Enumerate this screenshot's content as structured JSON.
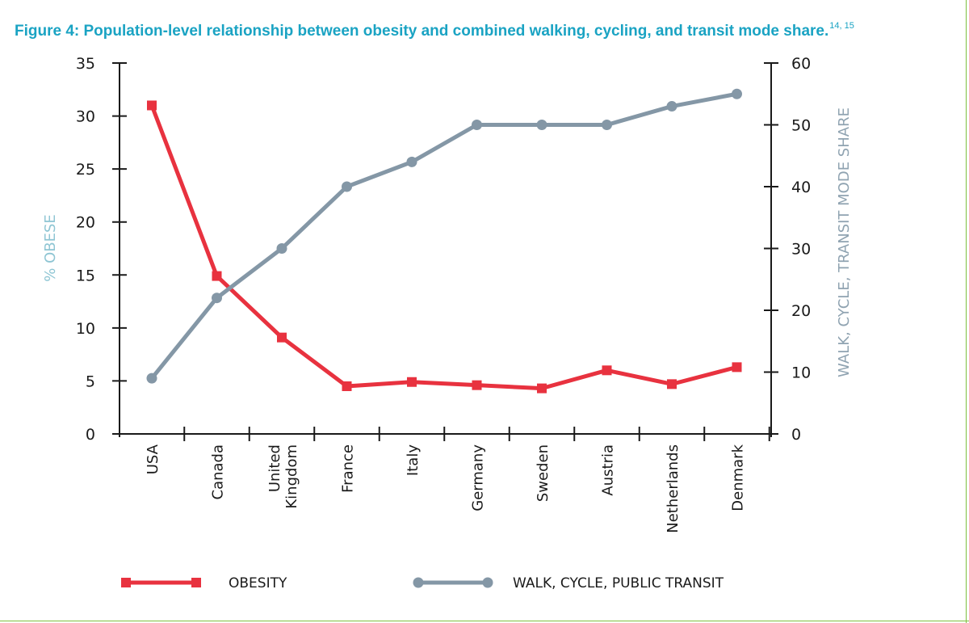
{
  "title": "Figure 4: Population-level relationship between obesity and combined walking, cycling, and transit mode share.",
  "title_refs": "14, 15",
  "chart_data": {
    "type": "line",
    "categories": [
      "USA",
      "Canada",
      "United Kingdom",
      "France",
      "Italy",
      "Germany",
      "Sweden",
      "Austria",
      "Netherlands",
      "Denmark"
    ],
    "series": [
      {
        "name": "OBESITY",
        "axis": "left",
        "color": "#e8323f",
        "marker": "square",
        "values": [
          31.0,
          14.9,
          9.1,
          4.5,
          4.9,
          4.6,
          4.3,
          6.0,
          4.7,
          6.3
        ]
      },
      {
        "name": "WALK, CYCLE, PUBLIC TRANSIT",
        "axis": "right",
        "color": "#8497a6",
        "marker": "circle",
        "values": [
          9,
          22,
          30,
          40,
          44,
          50,
          50,
          50,
          53,
          55
        ]
      }
    ],
    "ylabel_left": "% OBESE",
    "ylabel_right": "WALK, CYCLE, TRANSIT MODE SHARE",
    "ylim_left": [
      0,
      35
    ],
    "ylim_right": [
      0,
      60
    ],
    "yticks_left": [
      0,
      5,
      10,
      15,
      20,
      25,
      30,
      35
    ],
    "yticks_right": [
      0,
      10,
      20,
      30,
      40,
      50,
      60
    ],
    "grid": false,
    "legend_position": "bottom"
  }
}
